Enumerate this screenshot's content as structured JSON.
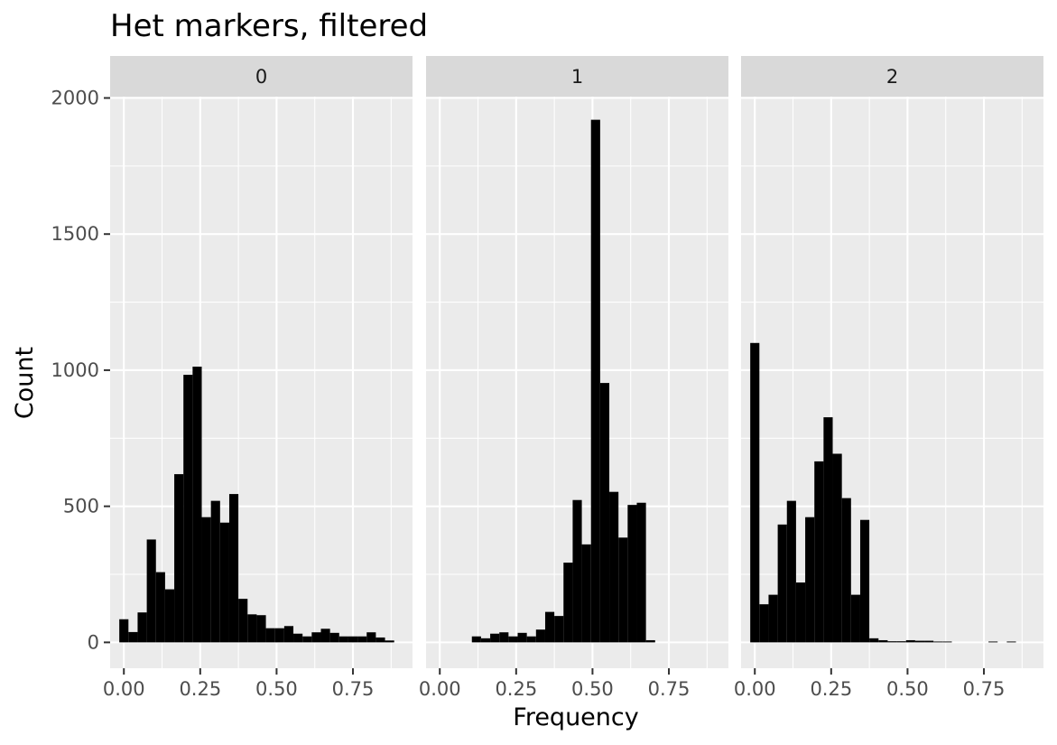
{
  "chart_data": {
    "type": "bar",
    "title": "Het markers, filtered",
    "xlabel": "Frequency",
    "ylabel": "Count",
    "xlim": [
      -0.045,
      0.945
    ],
    "ylim": [
      -95,
      2005
    ],
    "x_ticks": [
      0,
      0.25,
      0.5,
      0.75
    ],
    "x_tick_labels": [
      "0.00",
      "0.25",
      "0.50",
      "0.75"
    ],
    "y_ticks": [
      0,
      500,
      1000,
      1500,
      2000
    ],
    "y_tick_labels": [
      "0",
      "500",
      "1000",
      "1500",
      "2000"
    ],
    "grid": true,
    "bin_width": 0.03,
    "facets": [
      {
        "label": "0",
        "bins": [
          {
            "x": -0.0,
            "count": 85
          },
          {
            "x": 0.03,
            "count": 38
          },
          {
            "x": 0.06,
            "count": 110
          },
          {
            "x": 0.09,
            "count": 378
          },
          {
            "x": 0.12,
            "count": 258
          },
          {
            "x": 0.15,
            "count": 195
          },
          {
            "x": 0.18,
            "count": 618
          },
          {
            "x": 0.21,
            "count": 983
          },
          {
            "x": 0.24,
            "count": 1013
          },
          {
            "x": 0.27,
            "count": 460
          },
          {
            "x": 0.3,
            "count": 520
          },
          {
            "x": 0.33,
            "count": 440
          },
          {
            "x": 0.36,
            "count": 545
          },
          {
            "x": 0.39,
            "count": 160
          },
          {
            "x": 0.42,
            "count": 103
          },
          {
            "x": 0.45,
            "count": 100
          },
          {
            "x": 0.48,
            "count": 52
          },
          {
            "x": 0.51,
            "count": 52
          },
          {
            "x": 0.54,
            "count": 60
          },
          {
            "x": 0.57,
            "count": 32
          },
          {
            "x": 0.6,
            "count": 22
          },
          {
            "x": 0.63,
            "count": 37
          },
          {
            "x": 0.66,
            "count": 50
          },
          {
            "x": 0.69,
            "count": 35
          },
          {
            "x": 0.72,
            "count": 22
          },
          {
            "x": 0.75,
            "count": 22
          },
          {
            "x": 0.78,
            "count": 22
          },
          {
            "x": 0.81,
            "count": 37
          },
          {
            "x": 0.84,
            "count": 18
          },
          {
            "x": 0.87,
            "count": 7
          }
        ]
      },
      {
        "label": "1",
        "bins": [
          {
            "x": 0.12,
            "count": 22
          },
          {
            "x": 0.15,
            "count": 15
          },
          {
            "x": 0.18,
            "count": 32
          },
          {
            "x": 0.21,
            "count": 37
          },
          {
            "x": 0.24,
            "count": 22
          },
          {
            "x": 0.27,
            "count": 35
          },
          {
            "x": 0.3,
            "count": 22
          },
          {
            "x": 0.33,
            "count": 47
          },
          {
            "x": 0.36,
            "count": 112
          },
          {
            "x": 0.39,
            "count": 97
          },
          {
            "x": 0.42,
            "count": 293
          },
          {
            "x": 0.45,
            "count": 523
          },
          {
            "x": 0.48,
            "count": 360
          },
          {
            "x": 0.51,
            "count": 1920
          },
          {
            "x": 0.54,
            "count": 953
          },
          {
            "x": 0.57,
            "count": 553
          },
          {
            "x": 0.6,
            "count": 385
          },
          {
            "x": 0.63,
            "count": 505
          },
          {
            "x": 0.66,
            "count": 513
          },
          {
            "x": 0.69,
            "count": 8
          }
        ]
      },
      {
        "label": "2",
        "bins": [
          {
            "x": -0.0,
            "count": 1100
          },
          {
            "x": 0.03,
            "count": 140
          },
          {
            "x": 0.06,
            "count": 175
          },
          {
            "x": 0.09,
            "count": 433
          },
          {
            "x": 0.12,
            "count": 520
          },
          {
            "x": 0.15,
            "count": 220
          },
          {
            "x": 0.18,
            "count": 460
          },
          {
            "x": 0.21,
            "count": 665
          },
          {
            "x": 0.24,
            "count": 827
          },
          {
            "x": 0.27,
            "count": 693
          },
          {
            "x": 0.3,
            "count": 530
          },
          {
            "x": 0.33,
            "count": 175
          },
          {
            "x": 0.36,
            "count": 450
          },
          {
            "x": 0.39,
            "count": 15
          },
          {
            "x": 0.42,
            "count": 8
          },
          {
            "x": 0.45,
            "count": 4
          },
          {
            "x": 0.48,
            "count": 4
          },
          {
            "x": 0.51,
            "count": 8
          },
          {
            "x": 0.54,
            "count": 6
          },
          {
            "x": 0.57,
            "count": 6
          },
          {
            "x": 0.6,
            "count": 3
          },
          {
            "x": 0.63,
            "count": 3
          },
          {
            "x": 0.78,
            "count": 3
          },
          {
            "x": 0.84,
            "count": 3
          }
        ]
      }
    ]
  }
}
